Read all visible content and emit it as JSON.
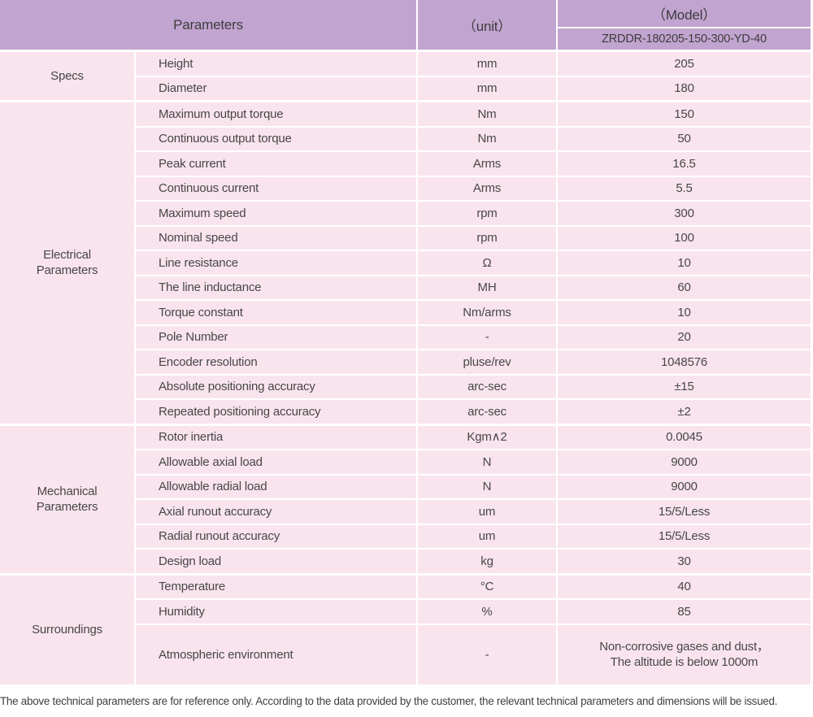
{
  "colors": {
    "header_bg": "#c2a4d0",
    "row_bg": "#f9e4ee",
    "text": "#474747"
  },
  "table": {
    "header": {
      "parameters_label": "Parameters",
      "unit_label": "（unit）",
      "model_label": "（Model）",
      "model_value": "ZRDDR-180205-150-300-YD-40"
    },
    "sections": [
      {
        "id": "specs",
        "name": "Specs",
        "rows": [
          {
            "param": "Height",
            "unit": "mm",
            "value": "205"
          },
          {
            "param": "Diameter",
            "unit": "mm",
            "value": "180"
          }
        ]
      },
      {
        "id": "electrical-parameters",
        "name": "Electrical\nParameters",
        "rows": [
          {
            "param": "Maximum output torque",
            "unit": "Nm",
            "value": "150"
          },
          {
            "param": "Continuous output torque",
            "unit": "Nm",
            "value": "50"
          },
          {
            "param": "Peak current",
            "unit": "Arms",
            "value": "16.5"
          },
          {
            "param": "Continuous current",
            "unit": "Arms",
            "value": "5.5"
          },
          {
            "param": "Maximum speed",
            "unit": "rpm",
            "value": "300"
          },
          {
            "param": "Nominal speed",
            "unit": "rpm",
            "value": "100"
          },
          {
            "param": "Line resistance",
            "unit": "Ω",
            "value": "10"
          },
          {
            "param": "The line inductance",
            "unit": "MH",
            "value": "60"
          },
          {
            "param": "Torque constant",
            "unit": "Nm/arms",
            "value": "10"
          },
          {
            "param": "Pole Number",
            "unit": "-",
            "value": "20"
          },
          {
            "param": "Encoder resolution",
            "unit": "pluse/rev",
            "value": "1048576"
          },
          {
            "param": "Absolute positioning accuracy",
            "unit": "arc-sec",
            "value": "±15"
          },
          {
            "param": "Repeated positioning accuracy",
            "unit": "arc-sec",
            "value": "±2"
          }
        ]
      },
      {
        "id": "mechanical-parameters",
        "name": "Mechanical\nParameters",
        "rows": [
          {
            "param": "Rotor inertia",
            "unit": "Kgm∧2",
            "value": "0.0045"
          },
          {
            "param": "Allowable axial load",
            "unit": "N",
            "value": "9000"
          },
          {
            "param": "Allowable radial load",
            "unit": "N",
            "value": "9000"
          },
          {
            "param": "Axial runout accuracy",
            "unit": "um",
            "value": "15/5/Less"
          },
          {
            "param": "Radial runout accuracy",
            "unit": "um",
            "value": "15/5/Less"
          },
          {
            "param": "Design load",
            "unit": "kg",
            "value": "30"
          }
        ]
      },
      {
        "id": "surroundings",
        "name": "Surroundings",
        "rows": [
          {
            "param": "Temperature",
            "unit": "°C",
            "value": "40"
          },
          {
            "param": "Humidity",
            "unit": "%",
            "value": "85"
          },
          {
            "param": "Atmospheric environment",
            "unit": "-",
            "value": "Non-corrosive gases and dust，\nThe altitude is below 1000m",
            "tall": true
          }
        ]
      }
    ]
  },
  "footer": {
    "note": "The above technical parameters are for reference only. According to the data provided by the customer, the relevant technical parameters and dimensions will be issued."
  }
}
